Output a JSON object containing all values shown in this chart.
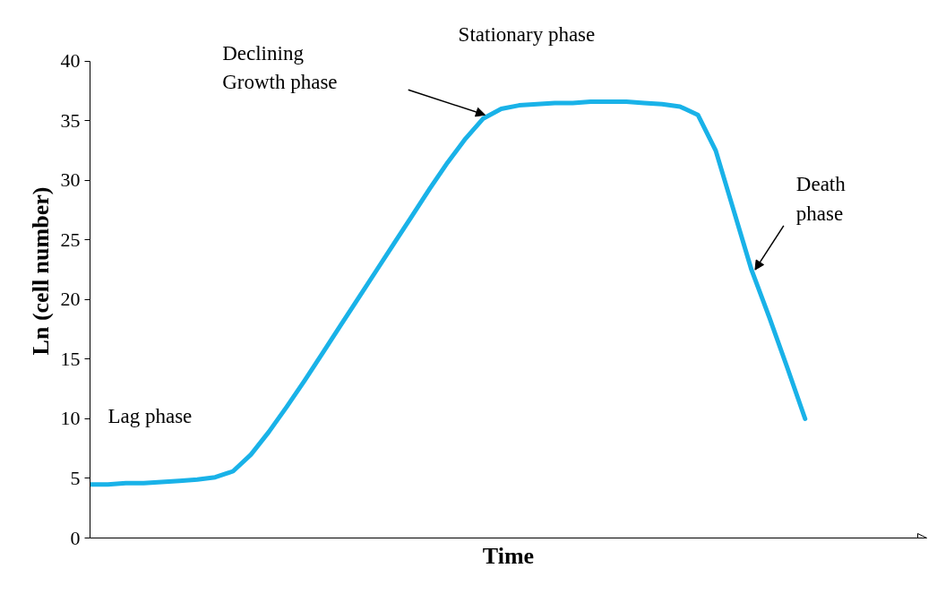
{
  "chart_data": {
    "type": "line",
    "xlabel": "Time",
    "ylabel": "Ln (cell number)",
    "categories": [
      null,
      null,
      null,
      null,
      null,
      null,
      null,
      null,
      null,
      null,
      null,
      null,
      null,
      null,
      null,
      null,
      null,
      null,
      null,
      null,
      null,
      null,
      null,
      null,
      null,
      null,
      null,
      null,
      null,
      null,
      null,
      null,
      null,
      null,
      null,
      null,
      null,
      null,
      null,
      null,
      null
    ],
    "series": [
      {
        "color": "#19b2e8",
        "values": [
          4.5,
          4.5,
          4.6,
          4.6,
          4.7,
          4.8,
          4.9,
          5.1,
          5.6,
          7.0,
          8.9,
          11.0,
          13.2,
          15.5,
          17.8,
          20.1,
          22.4,
          24.7,
          27.0,
          29.3,
          31.5,
          33.5,
          35.2,
          36.0,
          36.3,
          36.4,
          36.5,
          36.5,
          36.6,
          36.6,
          36.6,
          36.5,
          36.4,
          36.2,
          35.5,
          32.5,
          27.5,
          22.5,
          18.5,
          14.3,
          10.0
        ]
      }
    ],
    "ylim": [
      0,
      40
    ],
    "yticks": [
      0,
      5,
      10,
      15,
      20,
      25,
      30,
      35,
      40
    ],
    "grid": false,
    "marker": "none",
    "line_style": "solid",
    "tick_labels": "y",
    "annotations": [
      "Lag phase",
      "Declining\nGrowth phase",
      "Stationary phase",
      "Death\nphase"
    ]
  }
}
